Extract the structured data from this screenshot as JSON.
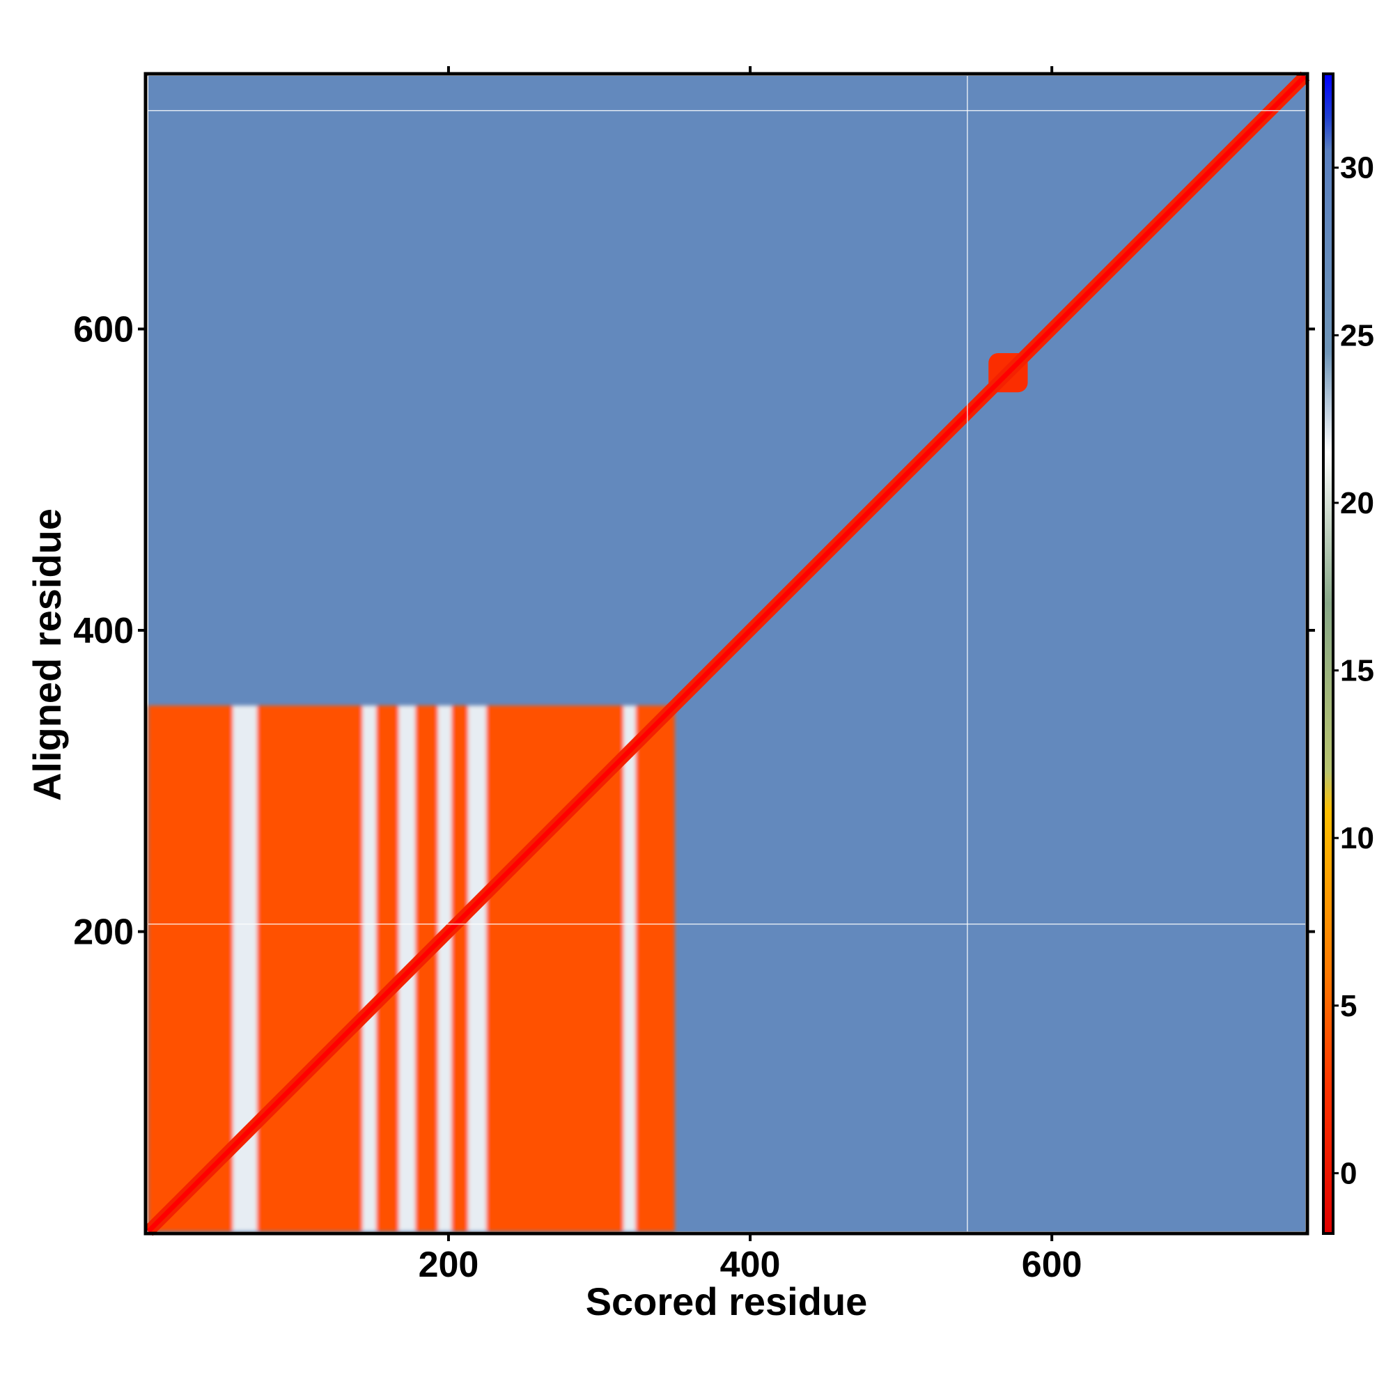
{
  "chart_data": {
    "type": "heatmap",
    "title": "",
    "xlabel": "Scored residue",
    "ylabel": "Aligned residue",
    "xlim": [
      1,
      768
    ],
    "ylim": [
      1,
      768
    ],
    "x_ticks": [
      200,
      400,
      600
    ],
    "y_ticks": [
      200,
      400,
      600
    ],
    "colorbar": {
      "ticks": [
        0,
        5,
        10,
        15,
        20,
        25,
        30
      ],
      "range": [
        -1.8,
        32.8
      ],
      "stops": [
        {
          "value": -1.8,
          "color": "#e00000"
        },
        {
          "value": 2.5,
          "color": "#ff3300"
        },
        {
          "value": 6,
          "color": "#ff7a00"
        },
        {
          "value": 10.8,
          "color": "#ffc000"
        },
        {
          "value": 12,
          "color": "#b8c470"
        },
        {
          "value": 17,
          "color": "#88a888"
        },
        {
          "value": 21.5,
          "color": "#ffffff"
        },
        {
          "value": 24.5,
          "color": "#6f95b8"
        },
        {
          "value": 30.5,
          "color": "#5a80c0"
        },
        {
          "value": 31.5,
          "color": "#2040d0"
        },
        {
          "value": 32.8,
          "color": "#0000ff"
        }
      ]
    },
    "background_value": 28,
    "diagonal_value": 1,
    "domain_block": {
      "x": [
        1,
        350
      ],
      "y": [
        1,
        350
      ],
      "value": 4
    },
    "gap_columns": [
      {
        "x": [
          57,
          73
        ],
        "value": 22
      },
      {
        "x": [
          143,
          152
        ],
        "value": 22
      },
      {
        "x": [
          167,
          178
        ],
        "value": 22
      },
      {
        "x": [
          193,
          202
        ],
        "value": 22
      },
      {
        "x": [
          213,
          225
        ],
        "value": 22
      },
      {
        "x": [
          316,
          324
        ],
        "value": 22
      }
    ],
    "local_blob": {
      "x": [
        558,
        584
      ],
      "y": [
        558,
        584
      ],
      "value": 2
    },
    "faint_lines": {
      "x": [
        544
      ],
      "y": [
        205,
        745
      ]
    }
  }
}
